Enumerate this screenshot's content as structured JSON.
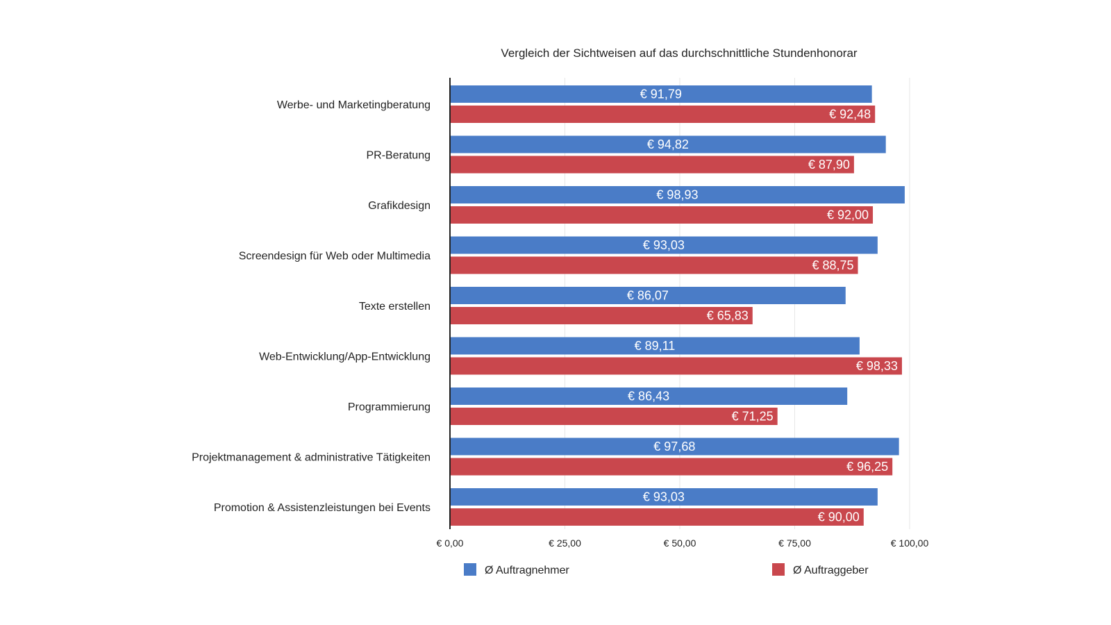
{
  "chart_data": {
    "type": "bar",
    "orientation": "horizontal",
    "title": "Vergleich der Sichtweisen auf das durchschnittliche Stundenhonorar",
    "categories": [
      "Werbe- und Marketingberatung",
      "PR-Beratung",
      "Grafikdesign",
      "Screendesign für Web oder Multimedia",
      "Texte erstellen",
      "Web-Entwicklung/App-Entwicklung",
      "Programmierung",
      "Projektmanagement & administrative Tätigkeiten",
      "Promotion & Assistenzleistungen bei Events"
    ],
    "series": [
      {
        "name": "Ø Auftragnehmer",
        "color": "#4a7cc7",
        "values": [
          91.79,
          94.82,
          98.93,
          93.03,
          86.07,
          89.11,
          86.43,
          97.68,
          93.03
        ],
        "labels": [
          "€ 91,79",
          "€ 94,82",
          "€ 98,93",
          "€ 93,03",
          "€ 86,07",
          "€ 89,11",
          "€ 86,43",
          "€ 97,68",
          "€ 93,03"
        ]
      },
      {
        "name": "Ø Auftraggeber",
        "color": "#c9474d",
        "values": [
          92.48,
          87.9,
          92.0,
          88.75,
          65.83,
          98.33,
          71.25,
          96.25,
          90.0
        ],
        "labels": [
          "€ 92,48",
          "€ 87,90",
          "€ 92,00",
          "€ 88,75",
          "€ 65,83",
          "€ 98,33",
          "€ 71,25",
          "€ 96,25",
          "€ 90,00"
        ]
      }
    ],
    "xlim": [
      0,
      100
    ],
    "xticks": [
      0,
      25,
      50,
      75,
      100
    ],
    "xtick_labels": [
      "€ 0,00",
      "€ 25,00",
      "€ 50,00",
      "€ 75,00",
      "€ 100,00"
    ],
    "grid": "vertical",
    "legend_position": "bottom"
  }
}
